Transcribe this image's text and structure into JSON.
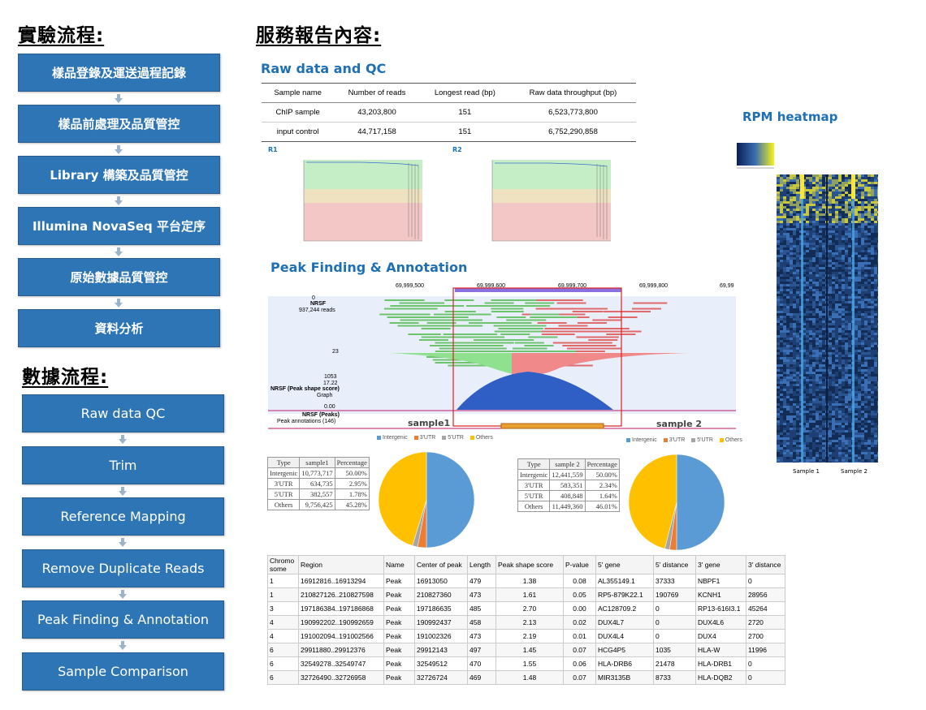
{
  "headings": {
    "experiment": "實驗流程:",
    "report": "服務報告內容:",
    "data_flow": "數據流程:"
  },
  "experiment_steps": [
    "樣品登錄及運送過程記錄",
    "樣品前處理及品質管控",
    "Library 構築及品質管控",
    "Illumina NovaSeq 平台定序",
    "原始數據品質管控",
    "資料分析"
  ],
  "data_steps": [
    "Raw data QC",
    "Trim",
    "Reference Mapping",
    "Remove Duplicate Reads",
    "Peak Finding & Annotation",
    "Sample Comparison"
  ],
  "raw_qc": {
    "title": "Raw data and QC",
    "headers": [
      "Sample name",
      "Number of reads",
      "Longest read (bp)",
      "Raw data throughput  (bp)"
    ],
    "rows": [
      [
        "ChIP sample",
        "43,203,800",
        "151",
        "6,523,773,800"
      ],
      [
        "input control",
        "44,717,158",
        "151",
        "6,752,290,858"
      ]
    ],
    "r1_label": "R1",
    "r2_label": "R2"
  },
  "peak_section": {
    "title": "Peak Finding & Annotation",
    "coords": [
      "69,999,500",
      "69,999,600",
      "69,999,700",
      "69,999,800",
      "69,99"
    ],
    "track_labels": {
      "zero": "0",
      "nrsf": "NRSF",
      "reads": "937,244 reads",
      "n23": "23",
      "n1053": "1053",
      "n1722": "17.22",
      "shape": "NRSF (Peak shape score)",
      "graph": "Graph",
      "n000": "0.00",
      "peaks": "NRSF (Peaks)",
      "annot": "Peak annotations (146)"
    }
  },
  "heatmap": {
    "title": "RPM heatmap",
    "sample1": "Sample 1",
    "sample2": "Sample 2"
  },
  "colors": {
    "accent": "#2e75b6",
    "title_blue": "#1f6fb5",
    "intergenic": "#5b9bd5",
    "utr3": "#ed7d31",
    "utr5": "#a5a5a5",
    "others": "#ffc000"
  },
  "pie_legend": [
    "Intergenic",
    "3'UTR",
    "5'UTR",
    "Others"
  ],
  "sample1": {
    "title": "sample1",
    "headers": [
      "Type",
      "sample1",
      "Percentage"
    ],
    "rows": [
      [
        "Intergenic",
        "10,773,717",
        "50.00%"
      ],
      [
        "3'UTR",
        "634,735",
        "2.95%"
      ],
      [
        "5'UTR",
        "382,557",
        "1.78%"
      ],
      [
        "Others",
        "9,756,425",
        "45.28%"
      ]
    ]
  },
  "sample2": {
    "title": "sample 2",
    "headers": [
      "Type",
      "sample 2",
      "Percentage"
    ],
    "rows": [
      [
        "Intergenic",
        "12,441,559",
        "50.00%"
      ],
      [
        "3'UTR",
        "583,351",
        "2.34%"
      ],
      [
        "5'UTR",
        "408,848",
        "1.64%"
      ],
      [
        "Others",
        "11,449,360",
        "46.01%"
      ]
    ]
  },
  "peak_table": {
    "headers": [
      "Chromo some",
      "Region",
      "Name",
      "Center of peak",
      "Length",
      "Peak shape score",
      "P-value",
      "5' gene",
      "5' distance",
      "3' gene",
      "3' distance"
    ],
    "rows": [
      [
        "1",
        "16912816..16913294",
        "Peak",
        "16913050",
        "479",
        "1.38",
        "0.08",
        "AL355149.1",
        "37333",
        "NBPF1",
        "0"
      ],
      [
        "1",
        "210827126..210827598",
        "Peak",
        "210827360",
        "473",
        "1.61",
        "0.05",
        "RP5-879K22.1",
        "190769",
        "KCNH1",
        "28956"
      ],
      [
        "3",
        "197186384..197186868",
        "Peak",
        "197186635",
        "485",
        "2.70",
        "0.00",
        "AC128709.2",
        "0",
        "RP13-616I3.1",
        "45264"
      ],
      [
        "4",
        "190992202..190992659",
        "Peak",
        "190992437",
        "458",
        "2.13",
        "0.02",
        "DUX4L7",
        "0",
        "DUX4L6",
        "2720"
      ],
      [
        "4",
        "191002094..191002566",
        "Peak",
        "191002326",
        "473",
        "2.19",
        "0.01",
        "DUX4L4",
        "0",
        "DUX4",
        "2700"
      ],
      [
        "6",
        "29911880..29912376",
        "Peak",
        "29912143",
        "497",
        "1.45",
        "0.07",
        "HCG4P5",
        "1035",
        "HLA-W",
        "11996"
      ],
      [
        "6",
        "32549278..32549747",
        "Peak",
        "32549512",
        "470",
        "1.55",
        "0.06",
        "HLA-DRB6",
        "21478",
        "HLA-DRB1",
        "0"
      ],
      [
        "6",
        "32726490..32726958",
        "Peak",
        "32726724",
        "469",
        "1.48",
        "0.07",
        "MIR3135B",
        "8733",
        "HLA-DQB2",
        "0"
      ]
    ]
  },
  "chart_data": [
    {
      "type": "pie",
      "title": "sample1",
      "categories": [
        "Intergenic",
        "3'UTR",
        "5'UTR",
        "Others"
      ],
      "values": [
        50.0,
        2.95,
        1.78,
        45.28
      ]
    },
    {
      "type": "pie",
      "title": "sample 2",
      "categories": [
        "Intergenic",
        "3'UTR",
        "5'UTR",
        "Others"
      ],
      "values": [
        50.0,
        2.34,
        1.64,
        46.01
      ]
    }
  ]
}
